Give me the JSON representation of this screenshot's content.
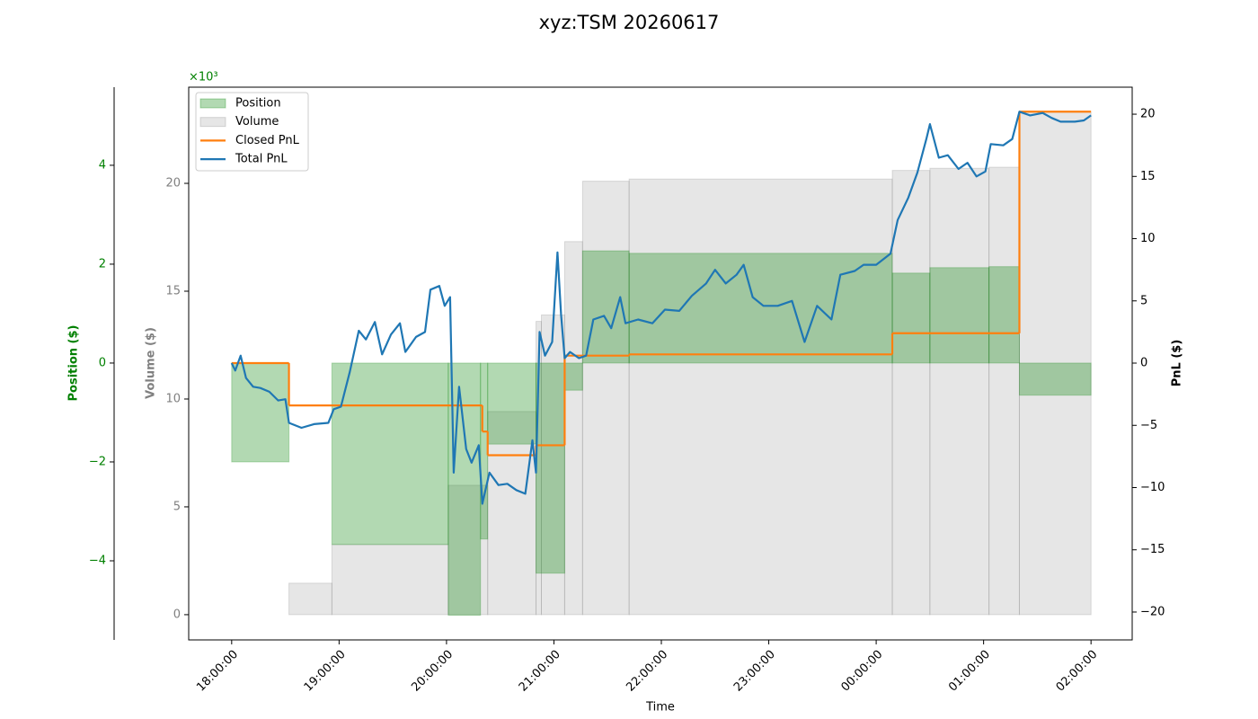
{
  "chart_data": {
    "type": "multi-axis-step",
    "title": "xyz:TSM 20260617",
    "xlabel": "Time",
    "xlim": [
      "17:36",
      "02:23"
    ],
    "xticks": [
      "18:00:00",
      "19:00:00",
      "20:00:00",
      "21:00:00",
      "22:00:00",
      "23:00:00",
      "00:00:00",
      "01:00:00",
      "02:00:00"
    ],
    "grid": false,
    "legend": "upper left",
    "axes": {
      "position": {
        "label": "Position ($)",
        "color": "#008000",
        "offset_label": "×10³",
        "lim": [
          -5.6,
          5.58
        ],
        "ticks": [
          {
            "value": -4,
            "label": "−4"
          },
          {
            "value": -2,
            "label": "−2"
          },
          0,
          2,
          4
        ]
      },
      "volume": {
        "label": "Volume ($)",
        "color": "#808080",
        "lim": [
          -1.17,
          24.46
        ],
        "ticks": [
          0,
          5,
          10,
          15,
          20
        ]
      },
      "pnl": {
        "label": "PnL ($)",
        "color": "#000000",
        "lim": [
          -22.24,
          22.17
        ],
        "ticks": [
          {
            "value": -20,
            "label": "−20"
          },
          {
            "value": -15,
            "label": "−15"
          },
          {
            "value": -10,
            "label": "−10"
          },
          {
            "value": -5,
            "label": "−5"
          },
          0,
          5,
          10,
          15,
          20
        ]
      }
    },
    "series": [
      {
        "name": "Volume",
        "kind": "step-area",
        "axis": "volume",
        "color": "#808080",
        "bins": [
          "18:00",
          "18:32",
          "18:56",
          "20:01",
          "20:23",
          "20:50",
          "20:53",
          "21:06",
          "21:16",
          "21:42",
          "00:09",
          "00:30",
          "01:03",
          "01:20",
          "02:00"
        ],
        "values": [
          0,
          1.46,
          3.25,
          6.0,
          9.42,
          13.6,
          13.9,
          17.3,
          20.1,
          20.2,
          20.6,
          20.7,
          20.75,
          23.3
        ]
      },
      {
        "name": "Position",
        "kind": "step-area",
        "axis": "position",
        "color": "#008000",
        "bins": [
          "18:00",
          "18:32",
          "18:56",
          "20:01",
          "20:19",
          "20:23",
          "20:50",
          "21:06",
          "21:16",
          "21:42",
          "00:09",
          "00:30",
          "01:03",
          "01:20",
          "02:00"
        ],
        "values": [
          -2.0,
          0,
          -3.67,
          -5.1,
          -3.56,
          -1.64,
          -4.25,
          -0.55,
          2.27,
          2.22,
          1.82,
          1.93,
          1.95,
          -0.65
        ]
      },
      {
        "name": "Closed PnL",
        "kind": "step-line",
        "axis": "pnl",
        "color": "#ff7f0e",
        "bins": [
          "18:00",
          "18:32",
          "20:20",
          "20:23",
          "20:50",
          "21:06",
          "21:42",
          "00:09",
          "01:20",
          "02:00"
        ],
        "values": [
          0,
          -3.4,
          -5.5,
          -7.4,
          -6.6,
          0.6,
          0.7,
          2.4,
          20.2
        ]
      },
      {
        "name": "Total PnL",
        "kind": "line",
        "axis": "pnl",
        "color": "#1f77b4",
        "x": [
          "18:00",
          "18:02",
          "18:05",
          "18:08",
          "18:12",
          "18:16",
          "18:21",
          "18:26",
          "18:30",
          "18:32",
          "18:39",
          "18:46",
          "18:54",
          "18:57",
          "19:01",
          "19:06",
          "19:11",
          "19:15",
          "19:20",
          "19:24",
          "19:29",
          "19:34",
          "19:37",
          "19:43",
          "19:48",
          "19:51",
          "19:56",
          "19:59",
          "20:02",
          "20:04",
          "20:07",
          "20:11",
          "20:14",
          "20:18",
          "20:20",
          "20:24",
          "20:29",
          "20:34",
          "20:39",
          "20:44",
          "20:48",
          "20:50",
          "20:52",
          "20:55",
          "20:59",
          "21:02",
          "21:04",
          "21:06",
          "21:09",
          "21:14",
          "21:18",
          "21:22",
          "21:28",
          "21:32",
          "21:37",
          "21:40",
          "21:47",
          "21:55",
          "22:02",
          "22:10",
          "22:17",
          "22:25",
          "22:30",
          "22:36",
          "22:42",
          "22:46",
          "22:51",
          "22:57",
          "23:05",
          "23:13",
          "23:20",
          "23:27",
          "23:35",
          "23:40",
          "23:48",
          "23:53",
          "00:00",
          "00:08",
          "00:12",
          "00:18",
          "00:23",
          "00:28",
          "00:30",
          "00:35",
          "00:40",
          "00:46",
          "00:51",
          "00:56",
          "01:01",
          "01:04",
          "01:11",
          "01:16",
          "01:20",
          "01:26",
          "01:33",
          "01:38",
          "01:43",
          "01:51",
          "01:56",
          "02:00"
        ],
        "values": [
          0,
          -0.6,
          0.6,
          -1.2,
          -1.9,
          -2.0,
          -2.3,
          -3.0,
          -2.9,
          -4.8,
          -5.2,
          -4.9,
          -4.8,
          -3.7,
          -3.5,
          -0.7,
          2.6,
          1.9,
          3.3,
          0.7,
          2.3,
          3.2,
          0.9,
          2.1,
          2.5,
          5.9,
          6.2,
          4.6,
          5.3,
          -8.8,
          -1.9,
          -6.9,
          -8.0,
          -6.6,
          -11.3,
          -8.8,
          -9.8,
          -9.7,
          -10.2,
          -10.5,
          -6.2,
          -8.8,
          2.5,
          0.6,
          1.7,
          8.9,
          3.9,
          0.4,
          0.9,
          0.4,
          0.6,
          3.5,
          3.8,
          2.8,
          5.3,
          3.2,
          3.5,
          3.2,
          4.3,
          4.2,
          5.4,
          6.4,
          7.5,
          6.4,
          7.1,
          7.9,
          5.3,
          4.6,
          4.6,
          5.0,
          1.7,
          4.6,
          3.5,
          7.1,
          7.4,
          7.9,
          7.9,
          8.8,
          11.5,
          13.3,
          15.3,
          18.0,
          19.2,
          16.5,
          16.7,
          15.6,
          16.1,
          15.0,
          15.4,
          17.6,
          17.5,
          18.0,
          20.2,
          19.9,
          20.1,
          19.7,
          19.4,
          19.4,
          19.5,
          19.9
        ]
      }
    ]
  }
}
